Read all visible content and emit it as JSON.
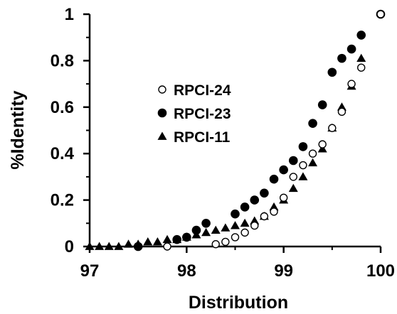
{
  "chart_data": {
    "type": "scatter",
    "title": "",
    "xlabel": "Distribution",
    "ylabel": "%Identity",
    "xlim": [
      97,
      100
    ],
    "ylim": [
      0,
      1
    ],
    "xticks": [
      "97",
      "98",
      "99",
      "100"
    ],
    "yticks": [
      "0",
      "0.2",
      "0.4",
      "0.6",
      "0.8",
      "1"
    ],
    "grid": false,
    "legend_position": "center-left",
    "series": [
      {
        "name": "RPCI-24",
        "marker": "open-circle",
        "x": [
          97.8,
          98.3,
          98.4,
          98.5,
          98.6,
          98.7,
          98.8,
          98.9,
          99.0,
          99.1,
          99.2,
          99.3,
          99.4,
          99.5,
          99.6,
          99.7,
          99.8,
          100.0
        ],
        "y": [
          0.0,
          0.01,
          0.02,
          0.04,
          0.06,
          0.09,
          0.13,
          0.15,
          0.21,
          0.3,
          0.35,
          0.4,
          0.44,
          0.51,
          0.58,
          0.7,
          0.77,
          1.0
        ]
      },
      {
        "name": "RPCI-23",
        "marker": "filled-circle",
        "x": [
          97.5,
          97.9,
          98.0,
          98.1,
          98.2,
          98.5,
          98.6,
          98.7,
          98.8,
          98.9,
          99.0,
          99.1,
          99.2,
          99.3,
          99.4,
          99.5,
          99.6,
          99.7,
          99.8,
          100.0
        ],
        "y": [
          0.0,
          0.03,
          0.04,
          0.07,
          0.1,
          0.14,
          0.17,
          0.2,
          0.23,
          0.29,
          0.33,
          0.37,
          0.43,
          0.53,
          0.61,
          0.75,
          0.81,
          0.85,
          0.91,
          1.0
        ]
      },
      {
        "name": "RPCI-11",
        "marker": "filled-triangle",
        "x": [
          97.0,
          97.1,
          97.2,
          97.3,
          97.4,
          97.5,
          97.6,
          97.7,
          97.8,
          97.9,
          98.0,
          98.1,
          98.2,
          98.3,
          98.4,
          98.5,
          98.6,
          98.7,
          98.8,
          98.9,
          99.0,
          99.1,
          99.2,
          99.3,
          99.4,
          99.5,
          99.6,
          99.7,
          99.8
        ],
        "y": [
          0.0,
          0.0,
          0.0,
          0.0,
          0.01,
          0.01,
          0.02,
          0.02,
          0.03,
          0.03,
          0.04,
          0.05,
          0.06,
          0.07,
          0.08,
          0.09,
          0.1,
          0.11,
          0.13,
          0.17,
          0.2,
          0.25,
          0.3,
          0.36,
          0.42,
          0.51,
          0.6,
          0.69,
          0.81
        ]
      }
    ]
  }
}
